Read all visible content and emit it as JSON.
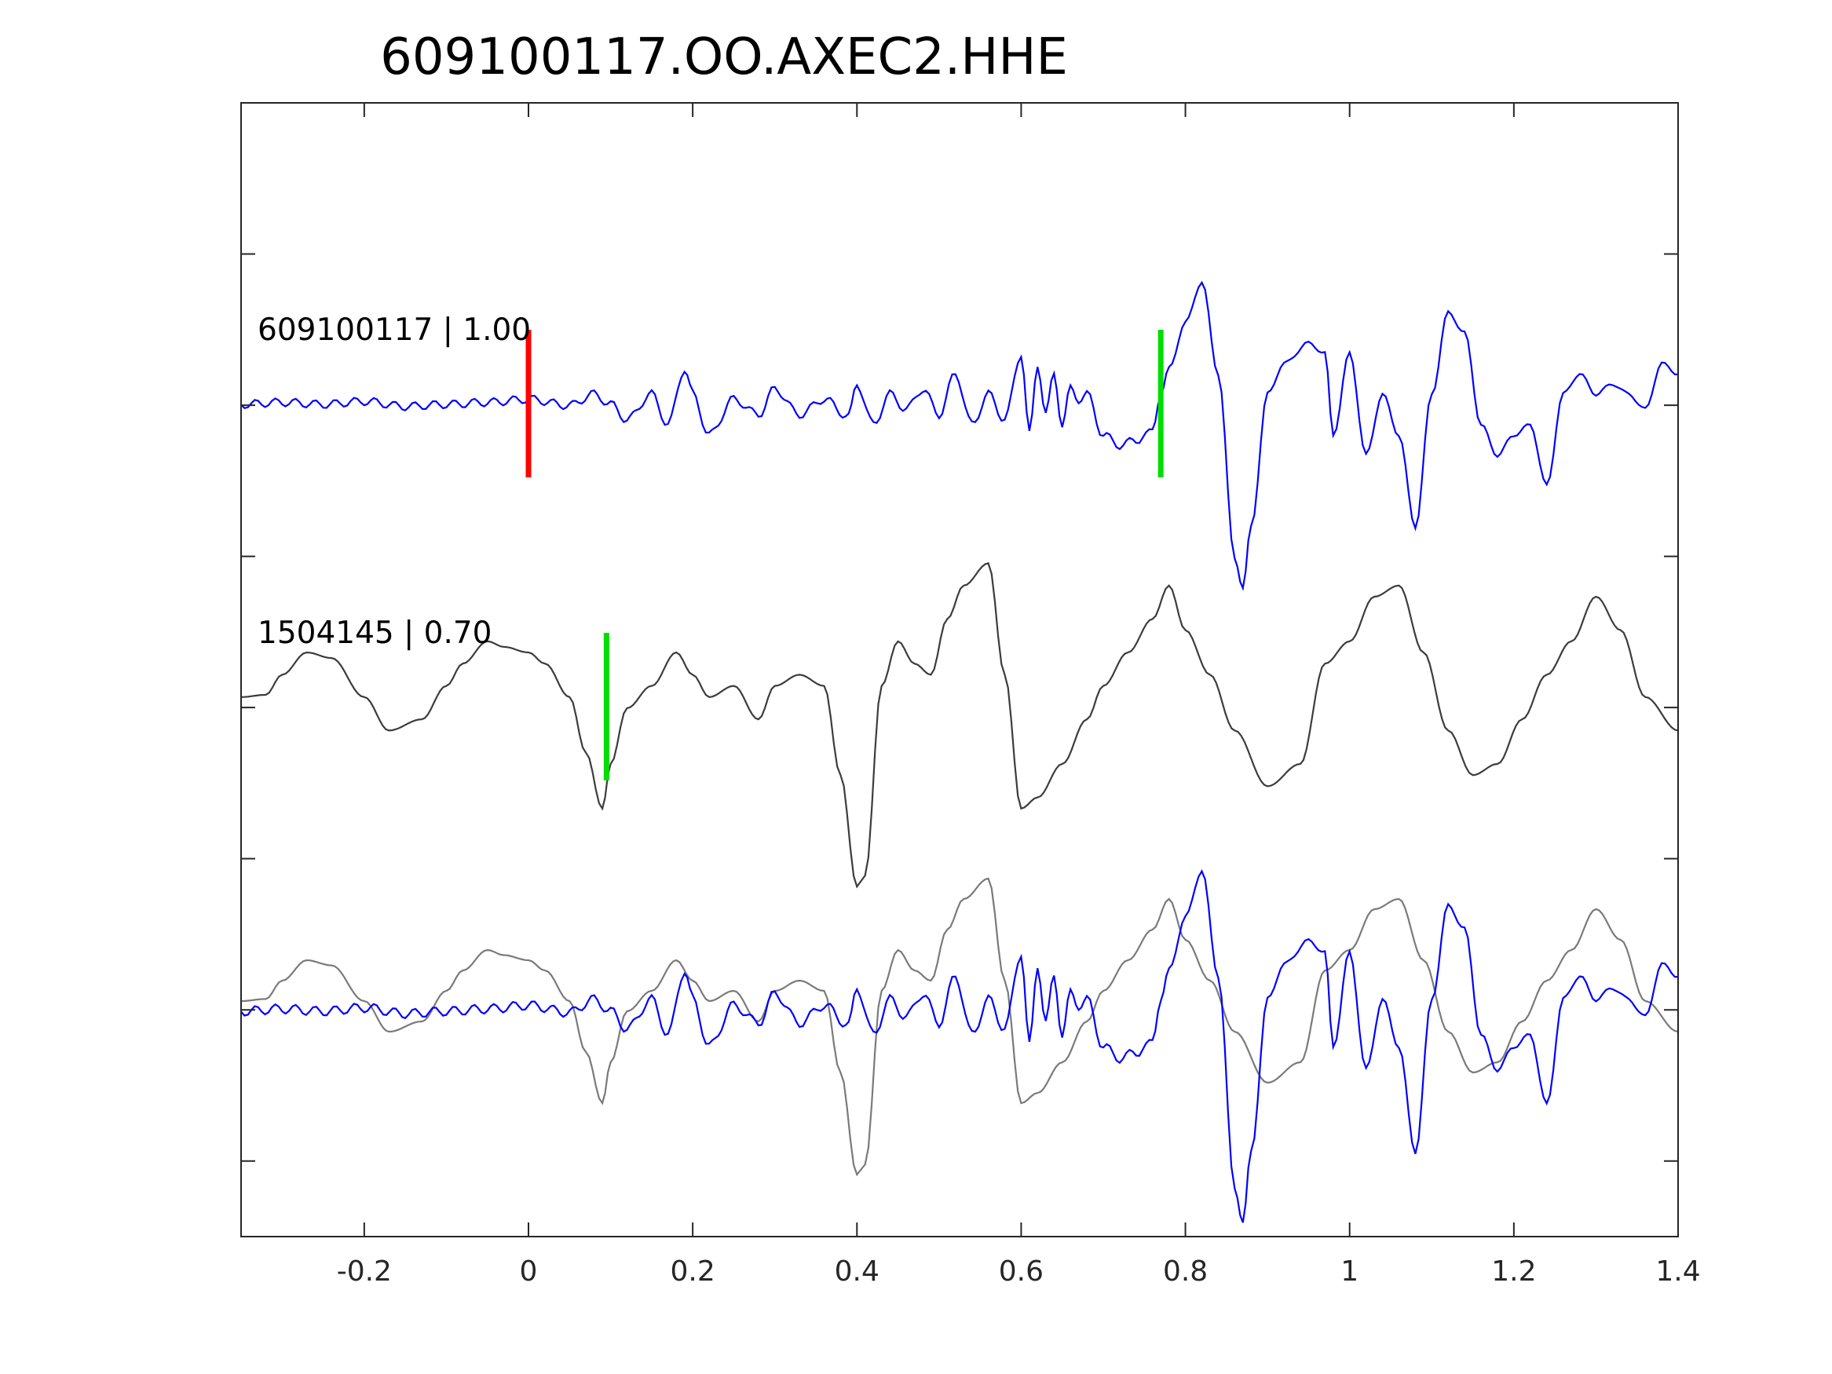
{
  "chart_data": {
    "type": "line",
    "title": "609100117.OO.AXEC2.HHE",
    "xlabel": "",
    "ylabel": "",
    "xlim": [
      -0.35,
      1.4
    ],
    "x_ticks": [
      -0.2,
      0,
      0.2,
      0.4,
      0.6,
      0.8,
      1,
      1.2,
      1.4
    ],
    "x_tick_labels": [
      "-0.2",
      "0",
      "0.2",
      "0.4",
      "0.6",
      "0.8",
      "1",
      "1.2",
      "1.4"
    ],
    "y_ticks_unlabeled": 7,
    "grid": false,
    "legend": "none",
    "colors": {
      "master": "#0000ff",
      "template": "#3c3c3c",
      "template_overlay": "#7a7a7a",
      "pick_p": "#ff0000",
      "pick_s": "#00dd00",
      "axis": "#262626"
    },
    "traces": [
      {
        "label": "609100117 | 1.00",
        "color": "#0000ff",
        "picks": [
          {
            "time": 0.0,
            "color": "#ff0000"
          },
          {
            "time": 0.77,
            "color": "#00dd00"
          }
        ],
        "x": [
          -0.35,
          -0.3,
          -0.25,
          -0.2,
          -0.15,
          -0.1,
          -0.05,
          0.0,
          0.05,
          0.08,
          0.1,
          0.12,
          0.15,
          0.17,
          0.19,
          0.2,
          0.22,
          0.25,
          0.28,
          0.3,
          0.33,
          0.36,
          0.39,
          0.4,
          0.42,
          0.44,
          0.46,
          0.48,
          0.5,
          0.52,
          0.54,
          0.56,
          0.58,
          0.6,
          0.61,
          0.62,
          0.63,
          0.64,
          0.65,
          0.66,
          0.67,
          0.68,
          0.7,
          0.72,
          0.74,
          0.76,
          0.77,
          0.78,
          0.8,
          0.82,
          0.84,
          0.86,
          0.87,
          0.88,
          0.9,
          0.92,
          0.95,
          0.97,
          0.98,
          1.0,
          1.02,
          1.04,
          1.06,
          1.08,
          1.1,
          1.12,
          1.14,
          1.16,
          1.18,
          1.2,
          1.22,
          1.24,
          1.26,
          1.28,
          1.3,
          1.32,
          1.34,
          1.36,
          1.38,
          1.4
        ],
        "y": [
          0,
          0.02,
          0,
          0.03,
          -0.02,
          0,
          0.02,
          0.05,
          -0.01,
          0.1,
          0,
          -0.15,
          0.1,
          -0.2,
          0.35,
          0.1,
          -0.3,
          0.05,
          -0.1,
          0.15,
          -0.1,
          0.05,
          -0.12,
          0.2,
          -0.2,
          0.1,
          -0.05,
          0.15,
          -0.1,
          0.3,
          -0.2,
          0.1,
          -0.15,
          0.5,
          -0.3,
          0.4,
          -0.1,
          0.3,
          -0.2,
          0.15,
          0.05,
          0.1,
          -0.3,
          -0.4,
          -0.35,
          -0.25,
          0.1,
          0.35,
          0.8,
          1.2,
          0.3,
          -1.5,
          -1.8,
          -1.2,
          0.1,
          0.4,
          0.6,
          0.5,
          -0.3,
          0.5,
          -0.5,
          0.1,
          -0.3,
          -1.2,
          0.1,
          0.9,
          0.7,
          -0.2,
          -0.5,
          -0.3,
          -0.2,
          -0.8,
          0.1,
          0.3,
          0.1,
          0.2,
          0.1,
          -0.05,
          0.4,
          0.3
        ]
      },
      {
        "label": "1504145 | 0.70",
        "color": "#3c3c3c",
        "picks": [
          {
            "time": 0.095,
            "color": "#00dd00"
          }
        ],
        "x": [
          -0.35,
          -0.32,
          -0.3,
          -0.27,
          -0.24,
          -0.2,
          -0.17,
          -0.13,
          -0.1,
          -0.08,
          -0.05,
          -0.03,
          0.0,
          0.02,
          0.05,
          0.07,
          0.09,
          0.1,
          0.12,
          0.15,
          0.18,
          0.2,
          0.22,
          0.25,
          0.28,
          0.3,
          0.33,
          0.36,
          0.38,
          0.4,
          0.41,
          0.43,
          0.45,
          0.47,
          0.49,
          0.51,
          0.53,
          0.56,
          0.58,
          0.6,
          0.62,
          0.65,
          0.68,
          0.7,
          0.73,
          0.76,
          0.78,
          0.8,
          0.83,
          0.86,
          0.9,
          0.94,
          0.97,
          1.0,
          1.03,
          1.06,
          1.09,
          1.12,
          1.15,
          1.18,
          1.21,
          1.24,
          1.27,
          1.3,
          1.33,
          1.36,
          1.4
        ],
        "y": [
          0.1,
          0.12,
          0.3,
          0.5,
          0.45,
          0.1,
          -0.2,
          -0.1,
          0.2,
          0.4,
          0.6,
          0.55,
          0.5,
          0.4,
          0.1,
          -0.4,
          -0.9,
          -0.5,
          0,
          0.2,
          0.5,
          0.3,
          0.1,
          0.2,
          -0.1,
          0.2,
          0.3,
          0.2,
          -0.6,
          -1.6,
          -1.5,
          0.2,
          0.6,
          0.4,
          0.3,
          0.8,
          1.1,
          1.3,
          0.3,
          -0.9,
          -0.8,
          -0.5,
          -0.1,
          0.2,
          0.5,
          0.8,
          1.1,
          0.7,
          0.3,
          -0.2,
          -0.7,
          -0.5,
          0.4,
          0.6,
          1.0,
          1.1,
          0.5,
          -0.2,
          -0.6,
          -0.5,
          -0.1,
          0.3,
          0.6,
          1.0,
          0.7,
          0.1,
          -0.2
        ]
      }
    ]
  }
}
